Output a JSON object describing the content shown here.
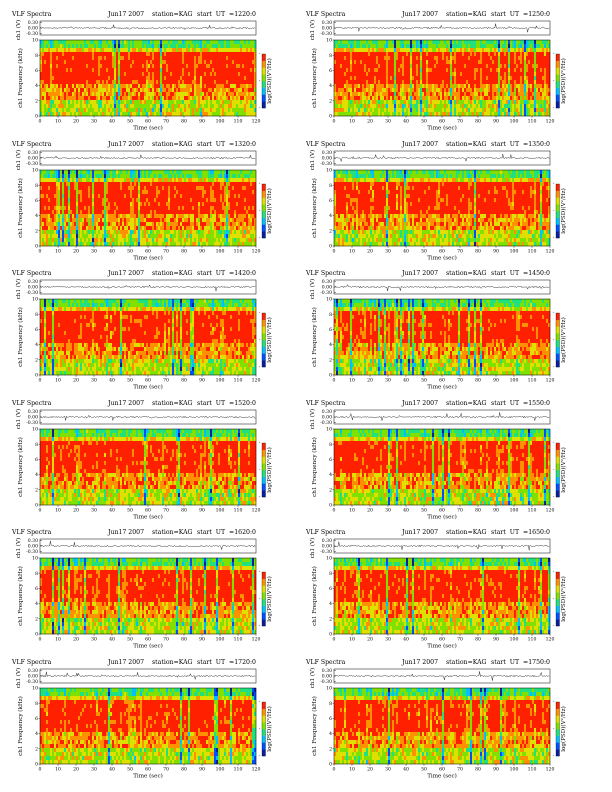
{
  "colors": {
    "spectrogram": [
      "#0a1ea0",
      "#0050ff",
      "#00c0ff",
      "#20e080",
      "#80e000",
      "#e0e000",
      "#ff9000",
      "#ff2000"
    ],
    "waveform": "#000000",
    "axis": "#000000"
  },
  "chart_data": [
    {
      "type": "heatmap",
      "header": {
        "left": "VLF Spectra",
        "date": "Jun17 2007",
        "station": "station=KAG",
        "start": "start  UT  =1220:0"
      },
      "wave": {
        "ylabel": "ch1 (V)",
        "yticks": [
          "0.30",
          "0.00",
          "-0.30"
        ],
        "ylim": [
          -0.3,
          0.3
        ]
      },
      "spec": {
        "ylabel": "ch1  Frequency  (kHz)",
        "yticks": [
          "0",
          "2",
          "4",
          "6",
          "8",
          "10"
        ],
        "ylim": [
          0,
          10
        ]
      },
      "xlabel": "Time  (sec)",
      "xticks": [
        "0",
        "10",
        "20",
        "30",
        "40",
        "50",
        "60",
        "70",
        "80",
        "90",
        "100",
        "110",
        "120"
      ],
      "xlim": [
        0,
        120
      ],
      "colorbar": {
        "label": "log(PSD)(V²/Hz)",
        "ticks": [
          "-",
          "-",
          "-"
        ]
      },
      "seed": 11
    },
    {
      "type": "heatmap",
      "header": {
        "left": "VLF Spectra",
        "date": "Jun17 2007",
        "station": "station=KAG",
        "start": "start  UT  =1250:0"
      },
      "wave": {
        "ylabel": "ch1 (V)",
        "yticks": [
          "0.30",
          "0.00",
          "-0.30"
        ],
        "ylim": [
          -0.3,
          0.3
        ]
      },
      "spec": {
        "ylabel": "ch1  Frequency  (kHz)",
        "yticks": [
          "0",
          "2",
          "4",
          "6",
          "8",
          "10"
        ],
        "ylim": [
          0,
          10
        ]
      },
      "xlabel": "Time  (sec)",
      "xticks": [
        "0",
        "10",
        "20",
        "30",
        "40",
        "50",
        "60",
        "70",
        "80",
        "90",
        "100",
        "110",
        "120"
      ],
      "xlim": [
        0,
        120
      ],
      "colorbar": {
        "label": "log(PSD)(V²/Hz)",
        "ticks": [
          "-",
          "-",
          "-"
        ]
      },
      "seed": 23
    },
    {
      "type": "heatmap",
      "header": {
        "left": "VLF Spectra",
        "date": "Jun17 2007",
        "station": "station=KAG",
        "start": "start  UT  =1320:0"
      },
      "wave": {
        "ylabel": "ch1 (V)",
        "yticks": [
          "0.30",
          "0.00",
          "-0.30"
        ],
        "ylim": [
          -0.3,
          0.3
        ]
      },
      "spec": {
        "ylabel": "ch1  Frequency  (kHz)",
        "yticks": [
          "0",
          "2",
          "4",
          "6",
          "8",
          "10"
        ],
        "ylim": [
          0,
          10
        ]
      },
      "xlabel": "Time  (sec)",
      "xticks": [
        "0",
        "10",
        "20",
        "30",
        "40",
        "50",
        "60",
        "70",
        "80",
        "90",
        "100",
        "110",
        "120"
      ],
      "xlim": [
        0,
        120
      ],
      "colorbar": {
        "label": "log(PSD)(V²/Hz)",
        "ticks": [
          "-",
          "-",
          "-"
        ]
      },
      "seed": 37
    },
    {
      "type": "heatmap",
      "header": {
        "left": "VLF Spectra",
        "date": "Jun17 2007",
        "station": "station=KAG",
        "start": "start  UT  =1350:0"
      },
      "wave": {
        "ylabel": "ch1 (V)",
        "yticks": [
          "0.30",
          "0.00",
          "-0.30"
        ],
        "ylim": [
          -0.3,
          0.3
        ]
      },
      "spec": {
        "ylabel": "ch1  Frequency  (kHz)",
        "yticks": [
          "0",
          "2",
          "4",
          "6",
          "8",
          "10"
        ],
        "ylim": [
          0,
          10
        ]
      },
      "xlabel": "Time  (sec)",
      "xticks": [
        "0",
        "10",
        "20",
        "30",
        "40",
        "50",
        "60",
        "70",
        "80",
        "90",
        "100",
        "110",
        "120"
      ],
      "xlim": [
        0,
        120
      ],
      "colorbar": {
        "label": "log(PSD)(V²/Hz)",
        "ticks": [
          "-",
          "-",
          "-"
        ]
      },
      "seed": 41
    },
    {
      "type": "heatmap",
      "header": {
        "left": "VLF Spectra",
        "date": "Jun17 2007",
        "station": "station=KAG",
        "start": "start  UT  =1420:0"
      },
      "wave": {
        "ylabel": "ch1 (V)",
        "yticks": [
          "0.30",
          "0.00",
          "-0.30"
        ],
        "ylim": [
          -0.3,
          0.3
        ]
      },
      "spec": {
        "ylabel": "ch1  Frequency  (kHz)",
        "yticks": [
          "0",
          "2",
          "4",
          "6",
          "8",
          "10"
        ],
        "ylim": [
          0,
          10
        ]
      },
      "xlabel": "Time  (sec)",
      "xticks": [
        "0",
        "10",
        "20",
        "30",
        "40",
        "50",
        "60",
        "70",
        "80",
        "90",
        "100",
        "110",
        "120"
      ],
      "xlim": [
        0,
        120
      ],
      "colorbar": {
        "label": "log(PSD)(V²/Hz)",
        "ticks": [
          "-",
          "-",
          "-"
        ]
      },
      "seed": 53
    },
    {
      "type": "heatmap",
      "header": {
        "left": "VLF Spectra",
        "date": "Jun17 2007",
        "station": "station=KAG",
        "start": "start  UT  =1450:0"
      },
      "wave": {
        "ylabel": "ch1 (V)",
        "yticks": [
          "0.30",
          "0.00",
          "-0.30"
        ],
        "ylim": [
          -0.3,
          0.3
        ]
      },
      "spec": {
        "ylabel": "ch1  Frequency  (kHz)",
        "yticks": [
          "0",
          "2",
          "4",
          "6",
          "8",
          "10"
        ],
        "ylim": [
          0,
          10
        ]
      },
      "xlabel": "Time  (sec)",
      "xticks": [
        "0",
        "10",
        "20",
        "30",
        "40",
        "50",
        "60",
        "70",
        "80",
        "90",
        "100",
        "110",
        "120"
      ],
      "xlim": [
        0,
        120
      ],
      "colorbar": {
        "label": "log(PSD)(V²/Hz)",
        "ticks": [
          "-",
          "-",
          "-"
        ]
      },
      "seed": 67
    },
    {
      "type": "heatmap",
      "header": {
        "left": "VLF Spectra",
        "date": "Jun17 2007",
        "station": "station=KAG",
        "start": "start  UT  =1520:0"
      },
      "wave": {
        "ylabel": "ch1 (V)",
        "yticks": [
          "0.30",
          "0.00",
          "-0.30"
        ],
        "ylim": [
          -0.3,
          0.3
        ]
      },
      "spec": {
        "ylabel": "ch1  Frequency  (kHz)",
        "yticks": [
          "0",
          "2",
          "4",
          "6",
          "8",
          "10"
        ],
        "ylim": [
          0,
          10
        ]
      },
      "xlabel": "Time  (sec)",
      "xticks": [
        "0",
        "10",
        "20",
        "30",
        "40",
        "50",
        "60",
        "70",
        "80",
        "90",
        "100",
        "110",
        "120"
      ],
      "xlim": [
        0,
        120
      ],
      "colorbar": {
        "label": "log(PSD)(V²/Hz)",
        "ticks": [
          "-",
          "-",
          "-"
        ]
      },
      "seed": 71
    },
    {
      "type": "heatmap",
      "header": {
        "left": "VLF Spectra",
        "date": "Jun17 2007",
        "station": "station=KAG",
        "start": "start  UT  =1550:0"
      },
      "wave": {
        "ylabel": "ch1 (V)",
        "yticks": [
          "0.30",
          "0.00",
          "-0.30"
        ],
        "ylim": [
          -0.3,
          0.3
        ]
      },
      "spec": {
        "ylabel": "ch1  Frequency  (kHz)",
        "yticks": [
          "0",
          "2",
          "4",
          "6",
          "8",
          "10"
        ],
        "ylim": [
          0,
          10
        ]
      },
      "xlabel": "Time  (sec)",
      "xticks": [
        "0",
        "10",
        "20",
        "30",
        "40",
        "50",
        "60",
        "70",
        "80",
        "90",
        "100",
        "110",
        "120"
      ],
      "xlim": [
        0,
        120
      ],
      "colorbar": {
        "label": "log(PSD)(V²/Hz)",
        "ticks": [
          "-",
          "-",
          "-"
        ]
      },
      "seed": 83
    },
    {
      "type": "heatmap",
      "header": {
        "left": "VLF Spectra",
        "date": "Jun17 2007",
        "station": "station=KAG",
        "start": "start  UT  =1620:0"
      },
      "wave": {
        "ylabel": "ch1 (V)",
        "yticks": [
          "0.30",
          "0.00",
          "-0.30"
        ],
        "ylim": [
          -0.3,
          0.3
        ]
      },
      "spec": {
        "ylabel": "ch1  Frequency  (kHz)",
        "yticks": [
          "0",
          "2",
          "4",
          "6",
          "8",
          "10"
        ],
        "ylim": [
          0,
          10
        ]
      },
      "xlabel": "Time  (sec)",
      "xticks": [
        "0",
        "10",
        "20",
        "30",
        "40",
        "50",
        "60",
        "70",
        "80",
        "90",
        "100",
        "110",
        "120"
      ],
      "xlim": [
        0,
        120
      ],
      "colorbar": {
        "label": "log(PSD)(V²/Hz)",
        "ticks": [
          "-",
          "-",
          "-"
        ]
      },
      "seed": 97
    },
    {
      "type": "heatmap",
      "header": {
        "left": "VLF Spectra",
        "date": "Jun17 2007",
        "station": "station=KAG",
        "start": "start  UT  =1650:0"
      },
      "wave": {
        "ylabel": "ch1 (V)",
        "yticks": [
          "0.30",
          "0.00",
          "-0.30"
        ],
        "ylim": [
          -0.3,
          0.3
        ]
      },
      "spec": {
        "ylabel": "ch1  Frequency  (kHz)",
        "yticks": [
          "0",
          "2",
          "4",
          "6",
          "8",
          "10"
        ],
        "ylim": [
          0,
          10
        ]
      },
      "xlabel": "Time  (sec)",
      "xticks": [
        "0",
        "10",
        "20",
        "30",
        "40",
        "50",
        "60",
        "70",
        "80",
        "90",
        "100",
        "110",
        "120"
      ],
      "xlim": [
        0,
        120
      ],
      "colorbar": {
        "label": "log(PSD)(V²/Hz)",
        "ticks": [
          "-",
          "-",
          "-"
        ]
      },
      "seed": 101
    },
    {
      "type": "heatmap",
      "header": {
        "left": "VLF Spectra",
        "date": "Jun17 2007",
        "station": "station=KAG",
        "start": "start  UT  =1720:0"
      },
      "wave": {
        "ylabel": "ch1 (V)",
        "yticks": [
          "0.30",
          "0.00",
          "-0.30"
        ],
        "ylim": [
          -0.3,
          0.3
        ]
      },
      "spec": {
        "ylabel": "ch1  Frequency  (kHz)",
        "yticks": [
          "0",
          "2",
          "4",
          "6",
          "8",
          "10"
        ],
        "ylim": [
          0,
          10
        ]
      },
      "xlabel": "Time  (sec)",
      "xticks": [
        "0",
        "10",
        "20",
        "30",
        "40",
        "50",
        "60",
        "70",
        "80",
        "90",
        "100",
        "110",
        "120"
      ],
      "xlim": [
        0,
        120
      ],
      "colorbar": {
        "label": "log(PSD)(V²/Hz)",
        "ticks": [
          "-",
          "-",
          "-"
        ]
      },
      "seed": 113
    },
    {
      "type": "heatmap",
      "header": {
        "left": "VLF Spectra",
        "date": "Jun17 2007",
        "station": "station=KAG",
        "start": "start  UT  =1750:0"
      },
      "wave": {
        "ylabel": "ch1 (V)",
        "yticks": [
          "0.30",
          "0.00",
          "-0.30"
        ],
        "ylim": [
          -0.3,
          0.3
        ]
      },
      "spec": {
        "ylabel": "ch1  Frequency  (kHz)",
        "yticks": [
          "0",
          "2",
          "4",
          "6",
          "8",
          "10"
        ],
        "ylim": [
          0,
          10
        ]
      },
      "xlabel": "Time  (sec)",
      "xticks": [
        "0",
        "10",
        "20",
        "30",
        "40",
        "50",
        "60",
        "70",
        "80",
        "90",
        "100",
        "110",
        "120"
      ],
      "xlim": [
        0,
        120
      ],
      "colorbar": {
        "label": "log(PSD)(V²/Hz)",
        "ticks": [
          "-",
          "-",
          "-"
        ]
      },
      "seed": 127
    }
  ]
}
